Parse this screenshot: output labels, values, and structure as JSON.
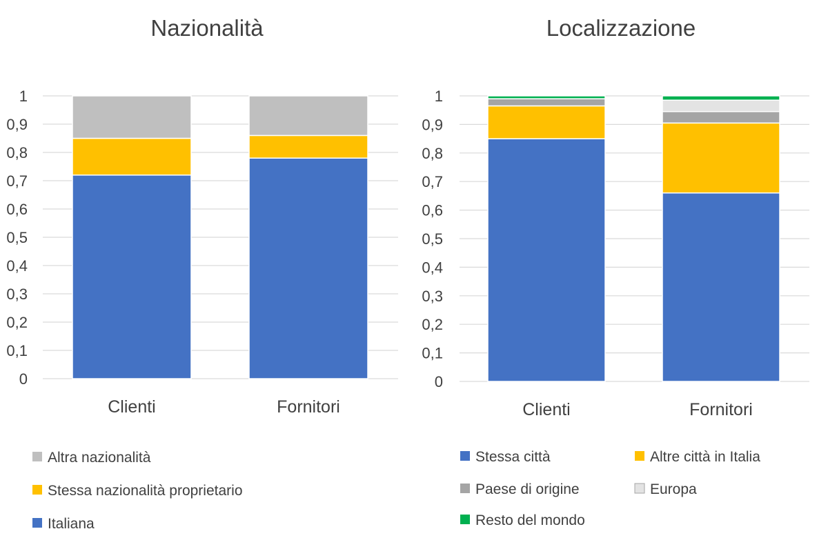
{
  "chart_data": [
    {
      "type": "bar",
      "stacked": true,
      "title": "Nazionalità",
      "categories": [
        "Clienti",
        "Fornitori"
      ],
      "ylim": [
        0,
        1
      ],
      "yticks": [
        "0",
        "0,1",
        "0,2",
        "0,3",
        "0,4",
        "0,5",
        "0,6",
        "0,7",
        "0,8",
        "0,9",
        "1"
      ],
      "grid": true,
      "legend_position": "bottom",
      "series": [
        {
          "name": "Italiana",
          "color": "#4472C4",
          "values": [
            0.72,
            0.78
          ]
        },
        {
          "name": "Stessa nazionalità proprietario",
          "color": "#FFC000",
          "values": [
            0.13,
            0.08
          ]
        },
        {
          "name": "Altra nazionalità",
          "color": "#BFBFBF",
          "values": [
            0.15,
            0.14
          ]
        }
      ]
    },
    {
      "type": "bar",
      "stacked": true,
      "title": "Localizzazione",
      "categories": [
        "Clienti",
        "Fornitori"
      ],
      "ylim": [
        0,
        1
      ],
      "yticks": [
        "0",
        "0,1",
        "0,2",
        "0,3",
        "0,4",
        "0,5",
        "0,6",
        "0,7",
        "0,8",
        "0,9",
        "1"
      ],
      "grid": true,
      "legend_position": "bottom",
      "series": [
        {
          "name": "Stessa città",
          "color": "#4472C4",
          "values": [
            0.85,
            0.66
          ]
        },
        {
          "name": "Altre città in Italia",
          "color": "#FFC000",
          "values": [
            0.115,
            0.245
          ]
        },
        {
          "name": "Paese di origine",
          "color": "#A5A5A5",
          "values": [
            0.025,
            0.04
          ]
        },
        {
          "name": "Europa",
          "color": "#E3E3E3",
          "values": [
            0.0,
            0.04
          ]
        },
        {
          "name": "Resto del mondo",
          "color": "#00B050",
          "values": [
            0.01,
            0.015
          ]
        }
      ]
    }
  ]
}
